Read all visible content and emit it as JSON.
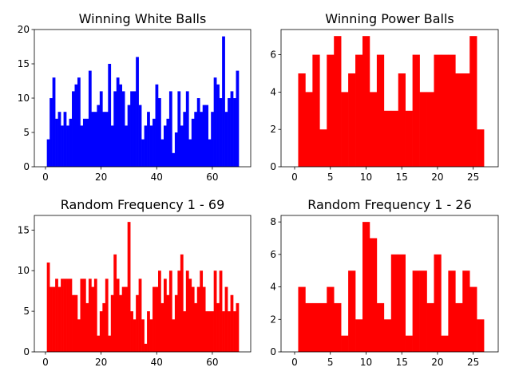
{
  "chart_data": [
    {
      "type": "histogram",
      "title": "Winning White Balls",
      "color": "#0000ff",
      "bins": [
        0.5,
        1.5,
        2.5,
        3.5,
        4.5,
        5.5,
        6.5,
        7.5,
        8.5,
        9.5,
        10.5,
        11.5,
        12.5,
        13.5,
        14.5,
        15.5,
        16.5,
        17.5,
        18.5,
        19.5,
        20.5,
        21.5,
        22.5,
        23.5,
        24.5,
        25.5,
        26.5,
        27.5,
        28.5,
        29.5,
        30.5,
        31.5,
        32.5,
        33.5,
        34.5,
        35.5,
        36.5,
        37.5,
        38.5,
        39.5,
        40.5,
        41.5,
        42.5,
        43.5,
        44.5,
        45.5,
        46.5,
        47.5,
        48.5,
        49.5,
        50.5,
        51.5,
        52.5,
        53.5,
        54.5,
        55.5,
        56.5,
        57.5,
        58.5,
        59.5,
        60.5,
        61.5,
        62.5,
        63.5,
        64.5,
        65.5,
        66.5,
        67.5,
        68.5,
        69.5
      ],
      "values": [
        4,
        10,
        13,
        7,
        8,
        6,
        8,
        6,
        7,
        11,
        12,
        13,
        6,
        7,
        7,
        14,
        8,
        8,
        9,
        11,
        8,
        8,
        15,
        6,
        11,
        13,
        12,
        11,
        6,
        9,
        11,
        11,
        16,
        9,
        4,
        6,
        8,
        6,
        7,
        12,
        10,
        4,
        6,
        7,
        11,
        2,
        5,
        11,
        6,
        8,
        11,
        4,
        7,
        8,
        10,
        8,
        9,
        9,
        4,
        8,
        13,
        12,
        10,
        19,
        8,
        10,
        11,
        10,
        14
      ],
      "xlim": [
        -4,
        73.8
      ],
      "xticks": [
        0,
        20,
        40,
        60
      ],
      "ylim": [
        0,
        20
      ],
      "yticks": [
        0,
        5,
        10,
        15,
        20
      ]
    },
    {
      "type": "histogram",
      "title": "Winning Power Balls",
      "color": "#ff0000",
      "bins": [
        0.5,
        1.5,
        2.5,
        3.5,
        4.5,
        5.5,
        6.5,
        7.5,
        8.5,
        9.5,
        10.5,
        11.5,
        12.5,
        13.5,
        14.5,
        15.5,
        16.5,
        17.5,
        18.5,
        19.5,
        20.5,
        21.5,
        22.5,
        23.5,
        24.5,
        25.5,
        26.5
      ],
      "values": [
        5,
        4,
        6,
        2,
        6,
        7,
        4,
        5,
        6,
        7,
        4,
        6,
        3,
        3,
        5,
        3,
        6,
        4,
        4,
        6,
        6,
        6,
        5,
        5,
        7,
        2
      ],
      "xlim": [
        -1.9,
        28.5
      ],
      "xticks": [
        0,
        5,
        10,
        15,
        20,
        25
      ],
      "ylim": [
        0,
        7.35
      ],
      "yticks": [
        0,
        2,
        4,
        6
      ]
    },
    {
      "type": "histogram",
      "title": "Random Frequency 1 - 69",
      "color": "#ff0000",
      "bins": [
        0.5,
        1.5,
        2.5,
        3.5,
        4.5,
        5.5,
        6.5,
        7.5,
        8.5,
        9.5,
        10.5,
        11.5,
        12.5,
        13.5,
        14.5,
        15.5,
        16.5,
        17.5,
        18.5,
        19.5,
        20.5,
        21.5,
        22.5,
        23.5,
        24.5,
        25.5,
        26.5,
        27.5,
        28.5,
        29.5,
        30.5,
        31.5,
        32.5,
        33.5,
        34.5,
        35.5,
        36.5,
        37.5,
        38.5,
        39.5,
        40.5,
        41.5,
        42.5,
        43.5,
        44.5,
        45.5,
        46.5,
        47.5,
        48.5,
        49.5,
        50.5,
        51.5,
        52.5,
        53.5,
        54.5,
        55.5,
        56.5,
        57.5,
        58.5,
        59.5,
        60.5,
        61.5,
        62.5,
        63.5,
        64.5,
        65.5,
        66.5,
        67.5,
        68.5,
        69.5
      ],
      "values": [
        11,
        8,
        8,
        9,
        8,
        9,
        9,
        9,
        9,
        7,
        7,
        4,
        9,
        9,
        6,
        9,
        8,
        9,
        2,
        5,
        6,
        9,
        2,
        7,
        12,
        9,
        7,
        8,
        8,
        16,
        5,
        4,
        7,
        9,
        4,
        1,
        5,
        4,
        8,
        8,
        10,
        6,
        9,
        7,
        10,
        4,
        7,
        10,
        12,
        5,
        10,
        9,
        8,
        6,
        8,
        10,
        8,
        5,
        5,
        5,
        10,
        6,
        10,
        5,
        8,
        5,
        7,
        5,
        6
      ],
      "xlim": [
        -4,
        73.8
      ],
      "xticks": [
        0,
        20,
        40,
        60
      ],
      "ylim": [
        0,
        16.8
      ],
      "yticks": [
        0,
        5,
        10,
        15
      ]
    },
    {
      "type": "histogram",
      "title": "Random Frequency 1 - 26",
      "color": "#ff0000",
      "bins": [
        0.5,
        1.5,
        2.5,
        3.5,
        4.5,
        5.5,
        6.5,
        7.5,
        8.5,
        9.5,
        10.5,
        11.5,
        12.5,
        13.5,
        14.5,
        15.5,
        16.5,
        17.5,
        18.5,
        19.5,
        20.5,
        21.5,
        22.5,
        23.5,
        24.5,
        25.5,
        26.5
      ],
      "values": [
        4,
        3,
        3,
        3,
        4,
        3,
        1,
        5,
        2,
        8,
        7,
        3,
        2,
        6,
        6,
        1,
        5,
        5,
        3,
        6,
        1,
        5,
        3,
        5,
        4,
        2
      ],
      "xlim": [
        -1.9,
        28.5
      ],
      "xticks": [
        0,
        5,
        10,
        15,
        20,
        25
      ],
      "ylim": [
        0,
        8.4
      ],
      "yticks": [
        0,
        2,
        4,
        6,
        8
      ]
    }
  ]
}
